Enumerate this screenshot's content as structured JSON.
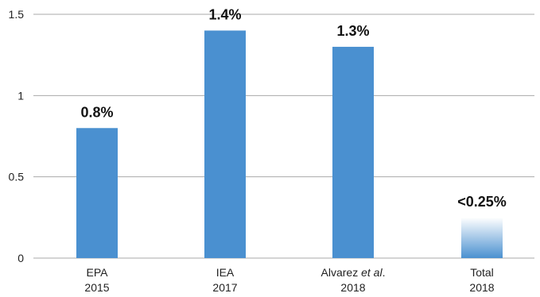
{
  "chart_data": {
    "type": "bar",
    "categories": [
      {
        "line1": "EPA",
        "line1_italic": "",
        "line1_suffix": "",
        "line2": "2015"
      },
      {
        "line1": "IEA",
        "line1_italic": "",
        "line1_suffix": "",
        "line2": "2017"
      },
      {
        "line1": "Alvarez ",
        "line1_italic": "et al",
        "line1_suffix": ".",
        "line2": "2018"
      },
      {
        "line1": "Total",
        "line1_italic": "",
        "line1_suffix": "",
        "line2": "2018"
      }
    ],
    "values": [
      0.8,
      1.4,
      1.3,
      0.25
    ],
    "data_labels": [
      "0.8%",
      "1.4%",
      "1.3%",
      "<0.25%"
    ],
    "bar_styles": [
      "solid",
      "solid",
      "solid",
      "gradient-faded"
    ],
    "ylim": [
      0,
      1.5
    ],
    "yticks": [
      0,
      0.5,
      1,
      1.5
    ],
    "ytick_labels": [
      "0",
      "0.5",
      "1",
      "1.5"
    ],
    "grid": true,
    "legend": "none",
    "bar_color": "#4a90d0",
    "grid_color": "#aaaaaa",
    "title": "",
    "xlabel": "",
    "ylabel": ""
  }
}
